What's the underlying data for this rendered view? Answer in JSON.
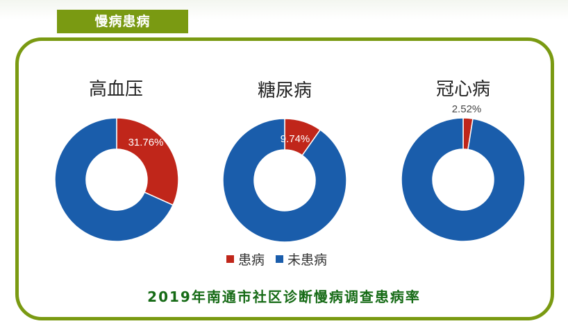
{
  "header": {
    "tab_label": "慢病患病"
  },
  "chart_data": [
    {
      "type": "pie",
      "title": "高血压",
      "categories": [
        "患病",
        "未患病"
      ],
      "values": [
        31.76,
        68.24
      ],
      "data_label": "31.76%",
      "colors": [
        "#c0261a",
        "#1a5dab"
      ]
    },
    {
      "type": "pie",
      "title": "糖尿病",
      "categories": [
        "患病",
        "未患病"
      ],
      "values": [
        9.74,
        90.26
      ],
      "data_label": "9.74%",
      "colors": [
        "#c0261a",
        "#1a5dab"
      ]
    },
    {
      "type": "pie",
      "title": "冠心病",
      "categories": [
        "患病",
        "未患病"
      ],
      "values": [
        2.52,
        97.48
      ],
      "data_label": "2.52%",
      "colors": [
        "#c0261a",
        "#1a5dab"
      ]
    }
  ],
  "legend": [
    {
      "label": "患病",
      "color": "#c0261a"
    },
    {
      "label": "未患病",
      "color": "#1a5dab"
    }
  ],
  "caption": "2019年南通市社区诊断慢病调查患病率"
}
